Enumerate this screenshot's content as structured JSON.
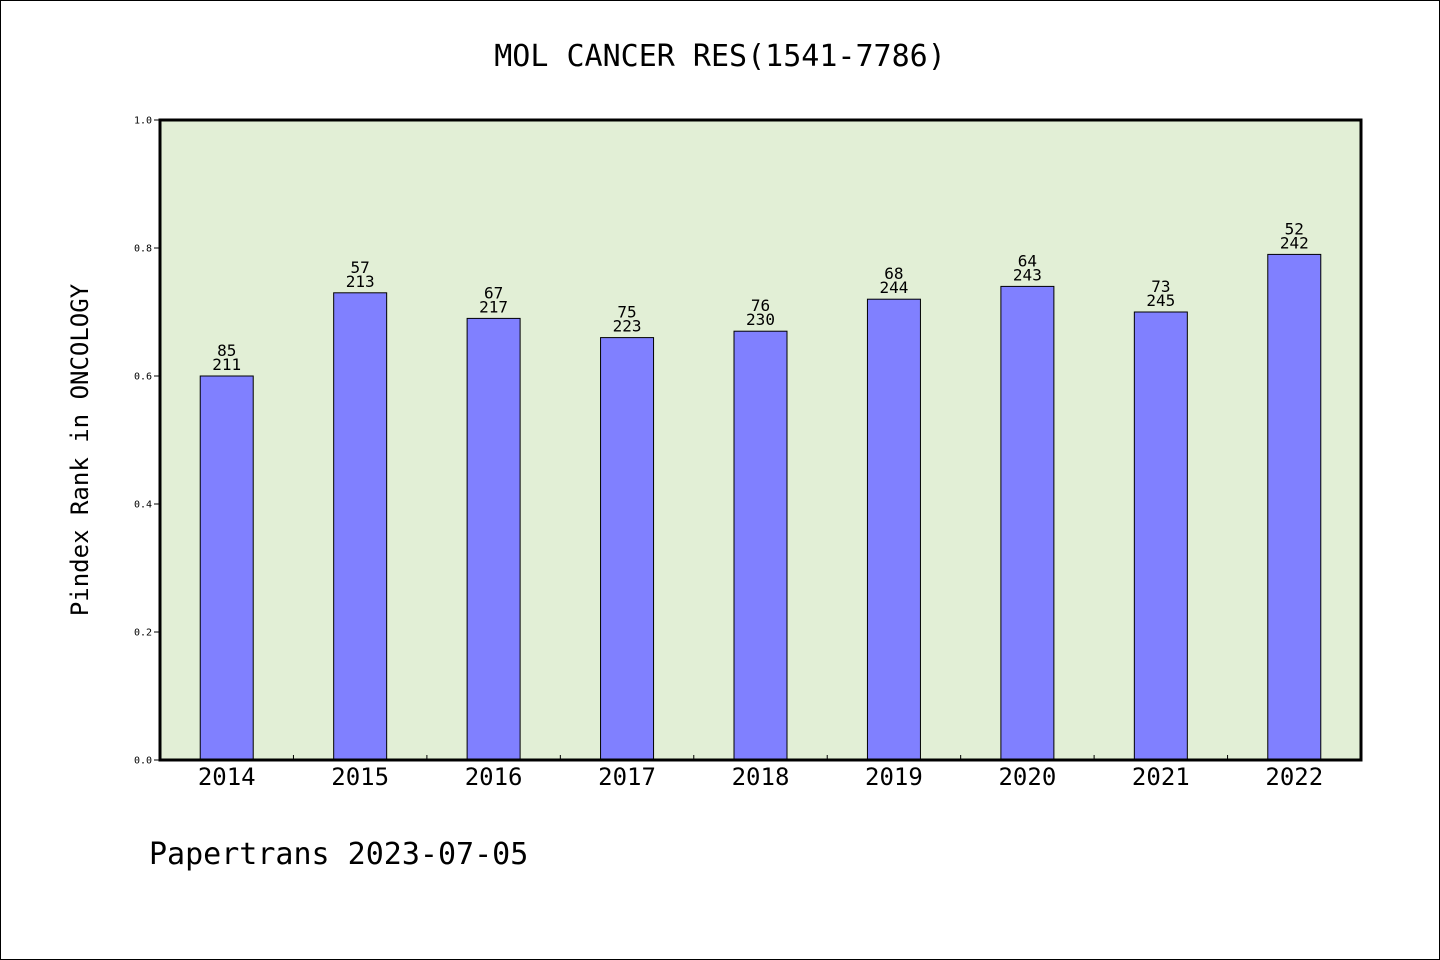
{
  "chart_data": {
    "type": "bar",
    "title": "MOL CANCER RES(1541-7786)",
    "xlabel": "",
    "ylabel": "Pindex Rank in ONCOLOGY",
    "categories": [
      "2014",
      "2015",
      "2016",
      "2017",
      "2018",
      "2019",
      "2020",
      "2021",
      "2022"
    ],
    "values": [
      0.6,
      0.73,
      0.69,
      0.66,
      0.67,
      0.72,
      0.74,
      0.7,
      0.79
    ],
    "labels_top": [
      "85",
      "57",
      "67",
      "75",
      "76",
      "68",
      "64",
      "73",
      "52"
    ],
    "labels_bottom": [
      "211",
      "213",
      "217",
      "223",
      "230",
      "244",
      "243",
      "245",
      "242"
    ],
    "yticks": [
      "0.0",
      "0.2",
      "0.4",
      "0.6",
      "0.8",
      "1.0"
    ],
    "ylim": [
      0,
      1.0
    ],
    "grid": false,
    "colors": {
      "bar": "#8080ff",
      "plot_bg": "#e2efd6",
      "frame": "#000000"
    }
  },
  "footer": "Papertrans 2023-07-05"
}
